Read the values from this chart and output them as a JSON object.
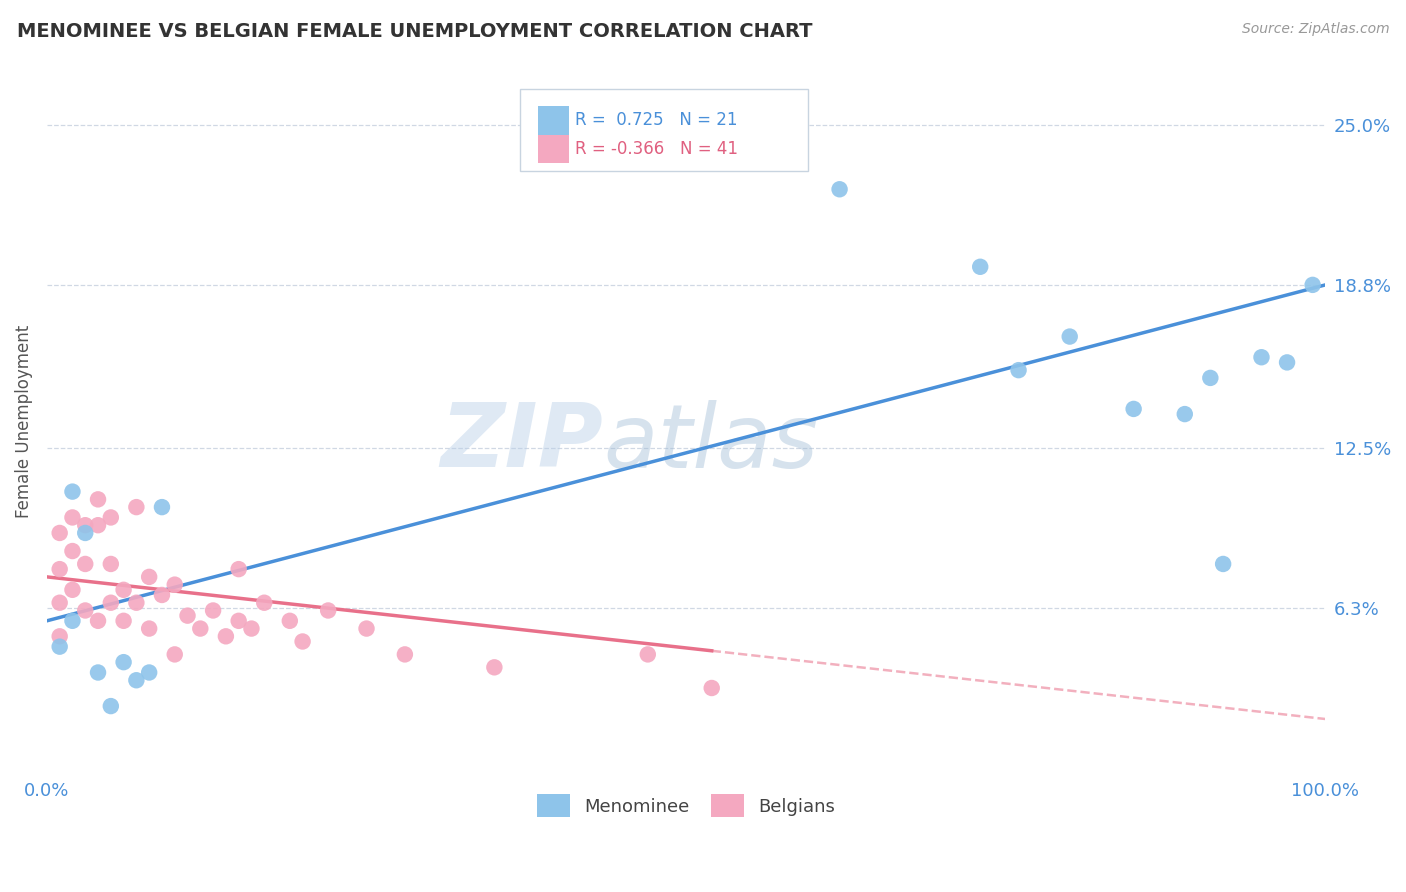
{
  "title": "MENOMINEE VS BELGIAN FEMALE UNEMPLOYMENT CORRELATION CHART",
  "source_text": "Source: ZipAtlas.com",
  "ylabel": "Female Unemployment",
  "watermark_text": "ZIP",
  "watermark_text2": "atlas",
  "xlim": [
    0,
    100
  ],
  "ylim": [
    0,
    27
  ],
  "yticks": [
    6.3,
    12.5,
    18.8,
    25.0
  ],
  "ytick_labels": [
    "6.3%",
    "12.5%",
    "18.8%",
    "25.0%"
  ],
  "xticks": [
    0,
    100
  ],
  "xtick_labels": [
    "0.0%",
    "100.0%"
  ],
  "menominee_color": "#8ec4ea",
  "belgians_color": "#f4a8c0",
  "menominee_line_color": "#4a90d9",
  "belgians_line_color": "#e8708a",
  "legend_R_menominee": " 0.725",
  "legend_N_menominee": "21",
  "legend_R_belgians": "-0.366",
  "legend_N_belgians": "41",
  "menominee_x": [
    1,
    2,
    2,
    3,
    4,
    5,
    6,
    7,
    8,
    9,
    62,
    73,
    76,
    80,
    85,
    89,
    91,
    92,
    95,
    97,
    99
  ],
  "menominee_y": [
    4.8,
    10.8,
    5.8,
    9.2,
    3.8,
    2.5,
    4.2,
    3.5,
    3.8,
    10.2,
    22.5,
    19.5,
    15.5,
    16.8,
    14.0,
    13.8,
    15.2,
    8.0,
    16.0,
    15.8,
    18.8
  ],
  "belgians_x": [
    1,
    1,
    1,
    1,
    2,
    2,
    2,
    3,
    3,
    3,
    4,
    4,
    4,
    5,
    5,
    5,
    6,
    6,
    7,
    7,
    8,
    8,
    9,
    10,
    10,
    11,
    12,
    13,
    14,
    15,
    15,
    16,
    17,
    19,
    20,
    22,
    25,
    28,
    35,
    47,
    52
  ],
  "belgians_y": [
    6.5,
    7.8,
    9.2,
    5.2,
    8.5,
    9.8,
    7.0,
    8.0,
    9.5,
    6.2,
    9.5,
    10.5,
    5.8,
    9.8,
    8.0,
    6.5,
    5.8,
    7.0,
    6.5,
    10.2,
    7.5,
    5.5,
    6.8,
    7.2,
    4.5,
    6.0,
    5.5,
    6.2,
    5.2,
    5.8,
    7.8,
    5.5,
    6.5,
    5.8,
    5.0,
    6.2,
    5.5,
    4.5,
    4.0,
    4.5,
    3.2
  ],
  "belgians_solid_end_x": 52,
  "menominee_line_x0": 0,
  "menominee_line_x1": 100,
  "menominee_line_y0": 5.8,
  "menominee_line_y1": 18.8,
  "belgians_line_x0": 0,
  "belgians_line_x1": 100,
  "belgians_line_y0": 7.5,
  "belgians_line_y1": 2.0,
  "background_color": "#ffffff",
  "grid_color": "#d0d8e4",
  "title_color": "#333333",
  "axis_label_color": "#555555",
  "ytick_color": "#4a90d9",
  "xtick_color": "#4a90d9",
  "legend_color_R_blue": "#4a90d9",
  "legend_color_R_pink": "#e06080"
}
